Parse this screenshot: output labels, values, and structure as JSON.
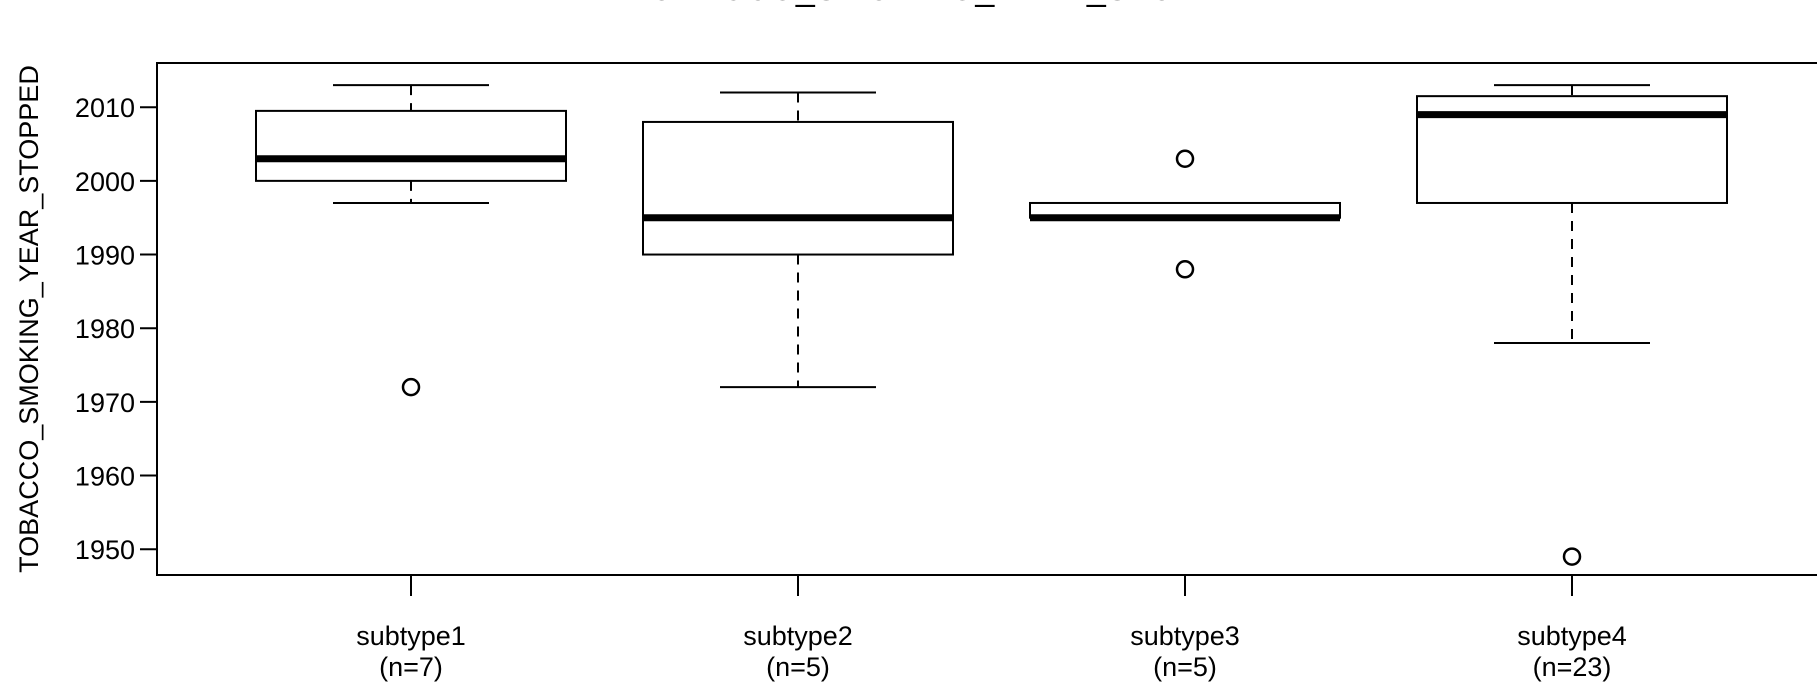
{
  "chart_data": {
    "type": "box",
    "title": "TOBACCO_SMOKING_YEAR_STOPPED",
    "ylabel": "TOBACCO_SMOKING_YEAR_STOPPED",
    "xlabel": "",
    "ylim": [
      1946.5,
      2016
    ],
    "yticks": [
      1950,
      1960,
      1970,
      1980,
      1990,
      2000,
      2010
    ],
    "grid": false,
    "legend": "none",
    "categories": [
      {
        "label": "subtype1",
        "n_label": "(n=7)",
        "min": 1997,
        "q1": 2000,
        "median": 2003,
        "q3": 2009.5,
        "max": 2013,
        "outliers": [
          1972
        ]
      },
      {
        "label": "subtype2",
        "n_label": "(n=5)",
        "min": 1972,
        "q1": 1990,
        "median": 1995,
        "q3": 2008,
        "max": 2012,
        "outliers": []
      },
      {
        "label": "subtype3",
        "n_label": "(n=5)",
        "min": 1995,
        "q1": 1995,
        "median": 1995,
        "q3": 1997,
        "max": 1997,
        "outliers": [
          2003,
          1988
        ]
      },
      {
        "label": "subtype4",
        "n_label": "(n=23)",
        "min": 1978,
        "q1": 1997,
        "median": 2009,
        "q3": 2011.5,
        "max": 2013,
        "outliers": [
          1949
        ]
      }
    ]
  }
}
